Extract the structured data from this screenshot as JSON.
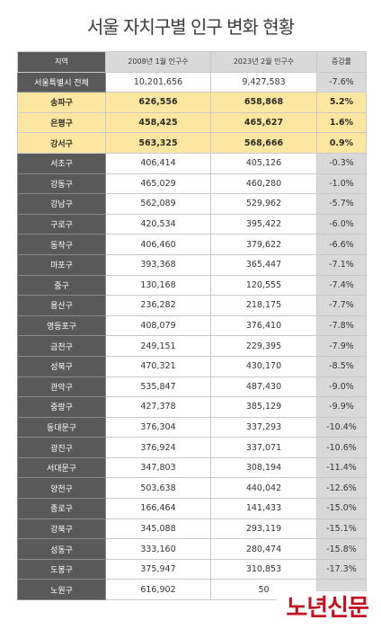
{
  "title": "서울 자치구별 인구 변화 현황",
  "headers": [
    "지역",
    "2008년 1월 인구수",
    "2023년 2월 인구수",
    "증감률"
  ],
  "rows": [
    {
      "region": "서울특별시 전체",
      "pop2008": "10,201,656",
      "pop2023": "9,427,583",
      "rate": "-7.6%",
      "highlight": false
    },
    {
      "region": "송파구",
      "pop2008": "626,556",
      "pop2023": "658,868",
      "rate": "5.2%",
      "highlight": true
    },
    {
      "region": "은평구",
      "pop2008": "458,425",
      "pop2023": "465,627",
      "rate": "1.6%",
      "highlight": true
    },
    {
      "region": "강서구",
      "pop2008": "563,325",
      "pop2023": "568,666",
      "rate": "0.9%",
      "highlight": true
    },
    {
      "region": "서초구",
      "pop2008": "406,414",
      "pop2023": "405,126",
      "rate": "-0.3%",
      "highlight": false
    },
    {
      "region": "강동구",
      "pop2008": "465,029",
      "pop2023": "460,280",
      "rate": "-1.0%",
      "highlight": false
    },
    {
      "region": "강남구",
      "pop2008": "562,089",
      "pop2023": "529,962",
      "rate": "-5.7%",
      "highlight": false
    },
    {
      "region": "구로구",
      "pop2008": "420,534",
      "pop2023": "395,422",
      "rate": "-6.0%",
      "highlight": false
    },
    {
      "region": "동작구",
      "pop2008": "406,460",
      "pop2023": "379,622",
      "rate": "-6.6%",
      "highlight": false
    },
    {
      "region": "마포구",
      "pop2008": "393,368",
      "pop2023": "365,447",
      "rate": "-7.1%",
      "highlight": false
    },
    {
      "region": "중구",
      "pop2008": "130,168",
      "pop2023": "120,555",
      "rate": "-7.4%",
      "highlight": false
    },
    {
      "region": "용산구",
      "pop2008": "236,282",
      "pop2023": "218,175",
      "rate": "-7.7%",
      "highlight": false
    },
    {
      "region": "영등포구",
      "pop2008": "408,079",
      "pop2023": "376,410",
      "rate": "-7.8%",
      "highlight": false
    },
    {
      "region": "금천구",
      "pop2008": "249,151",
      "pop2023": "229,395",
      "rate": "-7.9%",
      "highlight": false
    },
    {
      "region": "성북구",
      "pop2008": "470,321",
      "pop2023": "430,170",
      "rate": "-8.5%",
      "highlight": false
    },
    {
      "region": "관악구",
      "pop2008": "535,847",
      "pop2023": "487,430",
      "rate": "-9.0%",
      "highlight": false
    },
    {
      "region": "중랑구",
      "pop2008": "427,378",
      "pop2023": "385,129",
      "rate": "-9.9%",
      "highlight": false
    },
    {
      "region": "동대문구",
      "pop2008": "376,304",
      "pop2023": "337,293",
      "rate": "-10.4%",
      "highlight": false
    },
    {
      "region": "광진구",
      "pop2008": "376,924",
      "pop2023": "337,071",
      "rate": "-10.6%",
      "highlight": false
    },
    {
      "region": "서대문구",
      "pop2008": "347,803",
      "pop2023": "308,194",
      "rate": "-11.4%",
      "highlight": false
    },
    {
      "region": "양천구",
      "pop2008": "503,638",
      "pop2023": "440,042",
      "rate": "-12.6%",
      "highlight": false
    },
    {
      "region": "종로구",
      "pop2008": "166,464",
      "pop2023": "141,433",
      "rate": "-15.0%",
      "highlight": false
    },
    {
      "region": "강북구",
      "pop2008": "345,088",
      "pop2023": "293,119",
      "rate": "-15.1%",
      "highlight": false
    },
    {
      "region": "성동구",
      "pop2008": "333,160",
      "pop2023": "280,474",
      "rate": "-15.8%",
      "highlight": false
    },
    {
      "region": "도봉구",
      "pop2008": "375,947",
      "pop2023": "310,853",
      "rate": "-17.3%",
      "highlight": false
    },
    {
      "region": "노원구",
      "pop2008": "616,902",
      "pop2023": "50",
      "rate": "",
      "highlight": false
    }
  ],
  "logo": "노년신문",
  "colors": {
    "header_dark": "#595959",
    "highlight": "#fde7a0",
    "rate_column": "#d9d9d9",
    "logo_red": "#c1121f"
  }
}
